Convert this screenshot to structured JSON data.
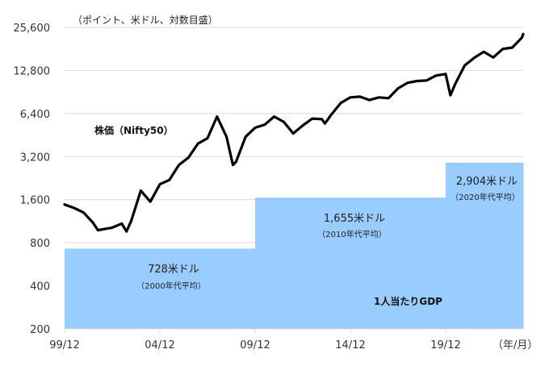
{
  "chart_data": {
    "type": "line",
    "title": "",
    "unit_note": "（ポイント、米ドル、対数目盛）",
    "xlabel": "（年/月）",
    "ylabel": "",
    "yscale": "log2",
    "ylim": [
      200,
      25600
    ],
    "yticks": [
      "25,600",
      "12,800",
      "6,400",
      "3,200",
      "1,600",
      "800",
      "400",
      "200"
    ],
    "ytick_values": [
      25600,
      12800,
      6400,
      3200,
      1600,
      800,
      400,
      200
    ],
    "xticks": [
      "99/12",
      "04/12",
      "09/12",
      "14/12",
      "19/12"
    ],
    "grid": true,
    "series": [
      {
        "name": "株価（Nifty50）",
        "type": "line",
        "color": "#000000",
        "x": [
          "99/12",
          "00/06",
          "00/12",
          "01/06",
          "01/09",
          "02/06",
          "02/12",
          "03/03",
          "03/06",
          "03/12",
          "04/06",
          "04/12",
          "05/06",
          "05/12",
          "06/06",
          "06/12",
          "07/06",
          "07/12",
          "08/06",
          "08/10",
          "08/12",
          "09/06",
          "09/12",
          "10/06",
          "10/12",
          "11/06",
          "11/12",
          "12/06",
          "12/12",
          "13/06",
          "13/08",
          "13/12",
          "14/06",
          "14/12",
          "15/06",
          "15/12",
          "16/06",
          "16/12",
          "17/06",
          "17/12",
          "18/06",
          "18/12",
          "19/06",
          "19/12",
          "20/03",
          "20/06",
          "20/12",
          "21/06",
          "21/12",
          "22/06",
          "22/12",
          "23/06",
          "23/12",
          "24/01"
        ],
        "values": [
          1480,
          1400,
          1300,
          1100,
          980,
          1020,
          1090,
          960,
          1140,
          1850,
          1550,
          2050,
          2200,
          2800,
          3150,
          3950,
          4300,
          6100,
          4400,
          2800,
          2950,
          4400,
          5100,
          5350,
          6100,
          5600,
          4650,
          5280,
          5900,
          5850,
          5450,
          6300,
          7600,
          8300,
          8400,
          7950,
          8300,
          8200,
          9600,
          10500,
          10800,
          10900,
          11800,
          12100,
          8600,
          10300,
          13900,
          15700,
          17300,
          15800,
          18100,
          18500,
          21700,
          23000
        ]
      },
      {
        "name": "1人当たりGDP",
        "type": "step-area",
        "color": "#99ccff",
        "segments": [
          {
            "from": "99/12",
            "to": "09/12",
            "value": 728,
            "label": "728米ドル",
            "sublabel": "（2000年代平均）"
          },
          {
            "from": "09/12",
            "to": "19/12",
            "value": 1655,
            "label": "1,655米ドル",
            "sublabel": "（2010年代平均）"
          },
          {
            "from": "19/12",
            "to": "24/01",
            "value": 2904,
            "label": "2,904米ドル",
            "sublabel": "（2020年代平均）"
          }
        ]
      }
    ],
    "annotations": [
      "株価（Nifty50）",
      "1人当たりGDP"
    ]
  },
  "labels": {
    "unit_note": "（ポイント、米ドル、対数目盛）",
    "x_unit": "（年/月）",
    "stock_series": "株価（Nifty50）",
    "gdp_series": "1人当たりGDP",
    "gdp_2000s": "728米ドル",
    "gdp_2000s_sub": "（2000年代平均）",
    "gdp_2010s": "1,655米ドル",
    "gdp_2010s_sub": "（2010年代平均）",
    "gdp_2020s": "2,904米ドル",
    "gdp_2020s_sub": "（2020年代平均）"
  }
}
